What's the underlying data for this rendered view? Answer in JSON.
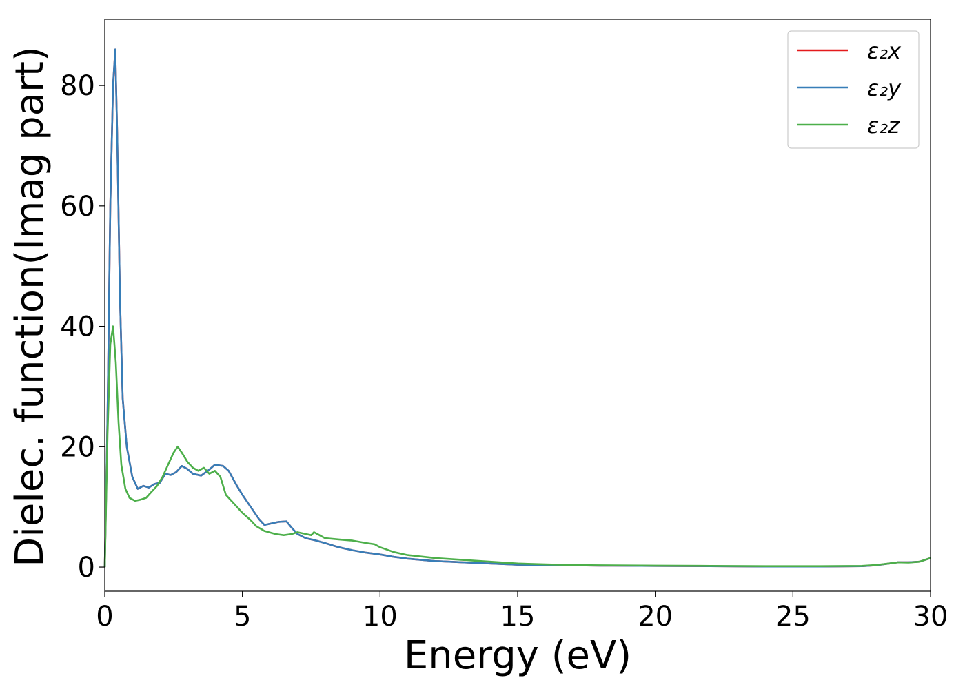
{
  "chart_data": {
    "type": "line",
    "xlabel": "Energy (eV)",
    "ylabel": "Dielec. function(Imag part)",
    "xlim": [
      0,
      30
    ],
    "ylim": [
      -4,
      91
    ],
    "xticks": [
      0,
      5,
      10,
      15,
      20,
      25,
      30
    ],
    "yticks": [
      0,
      20,
      40,
      60,
      80
    ],
    "grid": false,
    "legend_position": "top-right",
    "series": [
      {
        "name": "ε₂x",
        "color": "#e41a1c",
        "x": [
          0,
          0.1,
          0.2,
          0.3,
          0.38,
          0.45,
          0.55,
          0.65,
          0.8,
          1.0,
          1.2,
          1.4,
          1.6,
          1.8,
          2.0,
          2.2,
          2.4,
          2.6,
          2.8,
          3.0,
          3.2,
          3.5,
          3.8,
          4.0,
          4.3,
          4.5,
          4.8,
          5.0,
          5.3,
          5.6,
          5.8,
          6.0,
          6.3,
          6.6,
          6.8,
          7.0,
          7.3,
          7.6,
          8.0,
          8.5,
          9.0,
          9.5,
          10.0,
          10.5,
          11.0,
          12.0,
          13.0,
          14.0,
          15.0,
          16.0,
          17.0,
          18.0,
          20.0,
          22.0,
          24.0,
          26.0,
          27.5,
          28.0,
          28.5,
          28.8,
          29.2,
          29.6,
          30.0
        ],
        "values": [
          0,
          25,
          60,
          80,
          86,
          72,
          45,
          28,
          20,
          15,
          13,
          13.5,
          13.2,
          13.8,
          14,
          15.5,
          15.3,
          15.8,
          16.8,
          16.3,
          15.5,
          15.2,
          16.2,
          17,
          16.8,
          16,
          13.5,
          12,
          10,
          8,
          7,
          7.2,
          7.5,
          7.6,
          6.5,
          5.5,
          4.8,
          4.5,
          4,
          3.3,
          2.8,
          2.4,
          2.1,
          1.7,
          1.4,
          1.0,
          0.8,
          0.6,
          0.4,
          0.35,
          0.3,
          0.25,
          0.2,
          0.15,
          0.1,
          0.1,
          0.15,
          0.3,
          0.6,
          0.8,
          0.8,
          0.9,
          1.5
        ]
      },
      {
        "name": "ε₂y",
        "color": "#377eb8",
        "x": [
          0,
          0.1,
          0.2,
          0.3,
          0.38,
          0.45,
          0.55,
          0.65,
          0.8,
          1.0,
          1.2,
          1.4,
          1.6,
          1.8,
          2.0,
          2.2,
          2.4,
          2.6,
          2.8,
          3.0,
          3.2,
          3.5,
          3.8,
          4.0,
          4.3,
          4.5,
          4.8,
          5.0,
          5.3,
          5.6,
          5.8,
          6.0,
          6.3,
          6.6,
          6.8,
          7.0,
          7.3,
          7.6,
          8.0,
          8.5,
          9.0,
          9.5,
          10.0,
          10.5,
          11.0,
          12.0,
          13.0,
          14.0,
          15.0,
          16.0,
          17.0,
          18.0,
          20.0,
          22.0,
          24.0,
          26.0,
          27.5,
          28.0,
          28.5,
          28.8,
          29.2,
          29.6,
          30.0
        ],
        "values": [
          0,
          25,
          60,
          80,
          86,
          72,
          45,
          28,
          20,
          15,
          13,
          13.5,
          13.2,
          13.8,
          14,
          15.5,
          15.3,
          15.8,
          16.8,
          16.3,
          15.5,
          15.2,
          16.2,
          17,
          16.8,
          16,
          13.5,
          12,
          10,
          8,
          7,
          7.2,
          7.5,
          7.6,
          6.5,
          5.5,
          4.8,
          4.5,
          4,
          3.3,
          2.8,
          2.4,
          2.1,
          1.7,
          1.4,
          1.0,
          0.8,
          0.6,
          0.4,
          0.35,
          0.3,
          0.25,
          0.2,
          0.15,
          0.1,
          0.1,
          0.15,
          0.3,
          0.6,
          0.8,
          0.8,
          0.9,
          1.5
        ]
      },
      {
        "name": "ε₂z",
        "color": "#4daf4a",
        "x": [
          0,
          0.1,
          0.2,
          0.3,
          0.4,
          0.5,
          0.6,
          0.75,
          0.9,
          1.1,
          1.3,
          1.5,
          1.7,
          1.9,
          2.1,
          2.3,
          2.5,
          2.65,
          2.8,
          3.0,
          3.2,
          3.4,
          3.6,
          3.8,
          4.0,
          4.2,
          4.4,
          4.6,
          5.0,
          5.3,
          5.5,
          5.8,
          6.2,
          6.5,
          6.8,
          7.0,
          7.3,
          7.5,
          7.6,
          7.8,
          8.0,
          8.5,
          9.0,
          9.5,
          9.8,
          10.0,
          10.5,
          11.0,
          12.0,
          13.0,
          14.0,
          15.0,
          16.0,
          17.0,
          18.0,
          20.0,
          22.0,
          24.0,
          26.0,
          27.5,
          28.0,
          28.5,
          28.8,
          29.2,
          29.6,
          30.0
        ],
        "values": [
          0,
          22,
          37,
          40,
          34,
          24,
          17,
          13,
          11.5,
          11,
          11.2,
          11.5,
          12.5,
          13.5,
          15,
          17,
          19,
          20,
          19,
          17.5,
          16.5,
          16,
          16.5,
          15.5,
          16,
          15,
          12,
          11,
          9,
          7.8,
          6.8,
          6,
          5.5,
          5.3,
          5.5,
          5.8,
          5.5,
          5.3,
          5.8,
          5.3,
          4.8,
          4.6,
          4.4,
          4.0,
          3.8,
          3.3,
          2.5,
          2.0,
          1.5,
          1.2,
          0.9,
          0.6,
          0.45,
          0.35,
          0.3,
          0.25,
          0.2,
          0.15,
          0.15,
          0.2,
          0.35,
          0.6,
          0.8,
          0.75,
          0.9,
          1.5
        ]
      }
    ]
  }
}
